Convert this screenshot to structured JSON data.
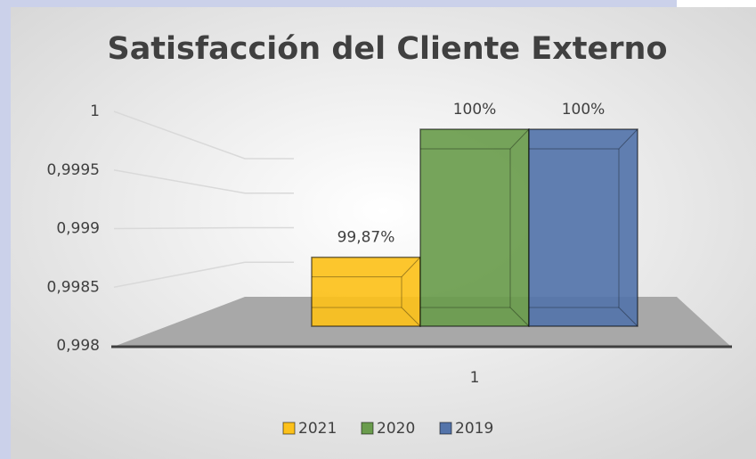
{
  "chart_data": {
    "type": "bar",
    "title": "Satisfacción del Cliente Externo",
    "categories": [
      "1"
    ],
    "series": [
      {
        "name": "2021",
        "color": "#fcc11b",
        "values": [
          0.9987
        ],
        "value_labels": [
          "99,87%"
        ]
      },
      {
        "name": "2020",
        "color": "#6a9c4d",
        "values": [
          1
        ],
        "value_labels": [
          "100%"
        ]
      },
      {
        "name": "2019",
        "color": "#5474aa",
        "values": [
          1
        ],
        "value_labels": [
          "100%"
        ]
      }
    ],
    "ylim": [
      0.998,
      1
    ],
    "yticks": [
      {
        "value": 0.998,
        "label": "0,998"
      },
      {
        "value": 0.9985,
        "label": "0,9985"
      },
      {
        "value": 0.999,
        "label": "0,999"
      },
      {
        "value": 0.9995,
        "label": "0,9995"
      },
      1
    ],
    "grid": true,
    "legend": "bottom"
  }
}
